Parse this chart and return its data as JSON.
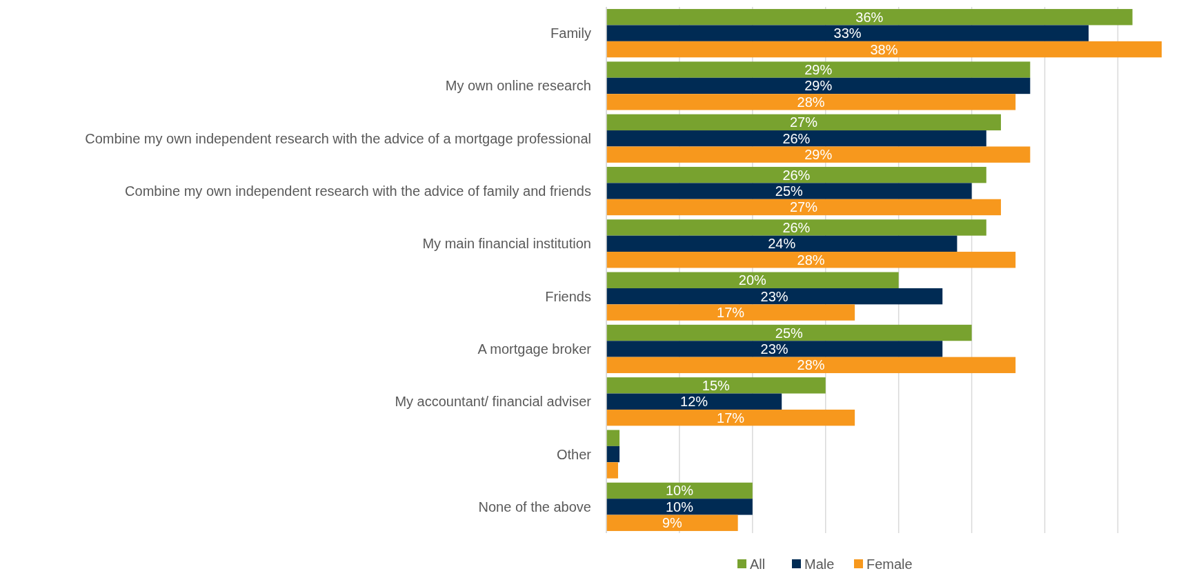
{
  "chart_data": {
    "type": "bar",
    "orientation": "horizontal",
    "categories": [
      "Family",
      "My own online research",
      "Combine my own independent research with the advice of a mortgage professional",
      "Combine my own independent research with the advice of family and friends",
      "My main financial institution",
      "Friends",
      "A mortgage broker",
      "My accountant/ financial adviser",
      "Other",
      "None of the above"
    ],
    "series": [
      {
        "name": "All",
        "color": "#78a22f",
        "values": [
          36,
          29,
          27,
          26,
          26,
          20,
          25,
          15,
          0.9,
          10
        ],
        "value_labels": [
          "36%",
          "29%",
          "27%",
          "26%",
          "26%",
          "20%",
          "25%",
          "15%",
          null,
          "10%"
        ]
      },
      {
        "name": "Male",
        "color": "#002b54",
        "values": [
          33,
          29,
          26,
          25,
          24,
          23,
          23,
          12,
          0.9,
          10
        ],
        "value_labels": [
          "33%",
          "29%",
          "26%",
          "25%",
          "24%",
          "23%",
          "23%",
          "12%",
          null,
          "10%"
        ]
      },
      {
        "name": "Female",
        "color": "#f7981d",
        "values": [
          38,
          28,
          29,
          27,
          28,
          17,
          28,
          17,
          0.8,
          9
        ],
        "value_labels": [
          "38%",
          "28%",
          "29%",
          "27%",
          "28%",
          "17%",
          "28%",
          "17%",
          null,
          "9%"
        ]
      }
    ],
    "xticks": [
      {
        "value": 0,
        "label": null
      },
      {
        "value": 5,
        "label": null
      },
      {
        "value": 10,
        "label": null
      },
      {
        "value": 15,
        "label": null
      },
      {
        "value": 20,
        "label": null
      },
      {
        "value": 25,
        "label": null
      },
      {
        "value": 30,
        "label": null
      },
      {
        "value": 35,
        "label": null
      }
    ],
    "tick_labels": "y",
    "grid": "x",
    "legend": "bottom"
  }
}
